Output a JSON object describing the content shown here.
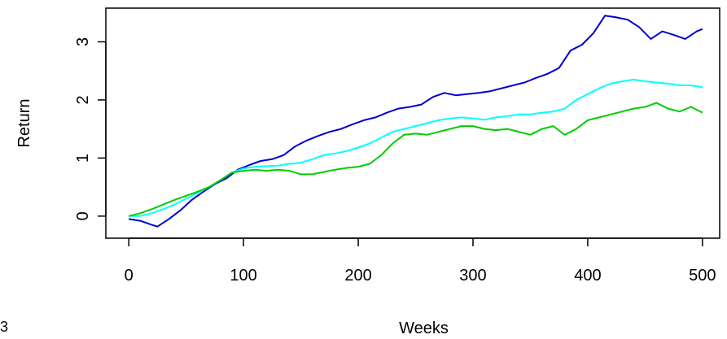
{
  "corner_label": "3",
  "chart_data": {
    "type": "line",
    "xlabel": "Weeks",
    "ylabel": "Return",
    "xlim": [
      -20,
      515
    ],
    "ylim": [
      -0.38,
      3.58
    ],
    "x_ticks": [
      0,
      100,
      200,
      300,
      400,
      500
    ],
    "y_ticks": [
      0,
      1,
      2,
      3
    ],
    "grid": false,
    "legend": "none",
    "series": [
      {
        "color": "#0000CD",
        "points": [
          [
            0,
            -0.05
          ],
          [
            10,
            -0.08
          ],
          [
            20,
            -0.15
          ],
          [
            25,
            -0.18
          ],
          [
            35,
            -0.05
          ],
          [
            45,
            0.1
          ],
          [
            55,
            0.28
          ],
          [
            65,
            0.42
          ],
          [
            75,
            0.55
          ],
          [
            85,
            0.65
          ],
          [
            95,
            0.8
          ],
          [
            105,
            0.88
          ],
          [
            115,
            0.95
          ],
          [
            125,
            0.98
          ],
          [
            135,
            1.05
          ],
          [
            145,
            1.2
          ],
          [
            155,
            1.3
          ],
          [
            165,
            1.38
          ],
          [
            175,
            1.45
          ],
          [
            185,
            1.5
          ],
          [
            195,
            1.58
          ],
          [
            205,
            1.65
          ],
          [
            215,
            1.7
          ],
          [
            225,
            1.78
          ],
          [
            235,
            1.85
          ],
          [
            245,
            1.88
          ],
          [
            255,
            1.92
          ],
          [
            265,
            2.05
          ],
          [
            275,
            2.12
          ],
          [
            285,
            2.08
          ],
          [
            295,
            2.1
          ],
          [
            305,
            2.12
          ],
          [
            315,
            2.15
          ],
          [
            325,
            2.2
          ],
          [
            335,
            2.25
          ],
          [
            345,
            2.3
          ],
          [
            355,
            2.38
          ],
          [
            365,
            2.45
          ],
          [
            375,
            2.55
          ],
          [
            385,
            2.85
          ],
          [
            395,
            2.95
          ],
          [
            405,
            3.15
          ],
          [
            415,
            3.45
          ],
          [
            425,
            3.42
          ],
          [
            435,
            3.38
          ],
          [
            445,
            3.25
          ],
          [
            455,
            3.05
          ],
          [
            465,
            3.18
          ],
          [
            475,
            3.12
          ],
          [
            485,
            3.05
          ],
          [
            495,
            3.18
          ],
          [
            500,
            3.22
          ]
        ]
      },
      {
        "color": "#00FFFF",
        "points": [
          [
            0,
            0.0
          ],
          [
            10,
            0.0
          ],
          [
            20,
            0.05
          ],
          [
            30,
            0.12
          ],
          [
            40,
            0.2
          ],
          [
            50,
            0.3
          ],
          [
            60,
            0.4
          ],
          [
            70,
            0.5
          ],
          [
            80,
            0.62
          ],
          [
            90,
            0.75
          ],
          [
            100,
            0.82
          ],
          [
            110,
            0.85
          ],
          [
            120,
            0.86
          ],
          [
            130,
            0.87
          ],
          [
            140,
            0.9
          ],
          [
            150,
            0.92
          ],
          [
            160,
            0.98
          ],
          [
            170,
            1.05
          ],
          [
            180,
            1.08
          ],
          [
            190,
            1.12
          ],
          [
            200,
            1.18
          ],
          [
            210,
            1.25
          ],
          [
            220,
            1.35
          ],
          [
            230,
            1.45
          ],
          [
            240,
            1.5
          ],
          [
            250,
            1.55
          ],
          [
            260,
            1.6
          ],
          [
            270,
            1.65
          ],
          [
            280,
            1.68
          ],
          [
            290,
            1.7
          ],
          [
            300,
            1.68
          ],
          [
            310,
            1.66
          ],
          [
            320,
            1.7
          ],
          [
            330,
            1.72
          ],
          [
            340,
            1.75
          ],
          [
            350,
            1.75
          ],
          [
            360,
            1.78
          ],
          [
            370,
            1.8
          ],
          [
            380,
            1.85
          ],
          [
            390,
            2.0
          ],
          [
            400,
            2.1
          ],
          [
            410,
            2.2
          ],
          [
            420,
            2.28
          ],
          [
            430,
            2.32
          ],
          [
            440,
            2.35
          ],
          [
            450,
            2.32
          ],
          [
            460,
            2.3
          ],
          [
            470,
            2.28
          ],
          [
            480,
            2.25
          ],
          [
            490,
            2.25
          ],
          [
            500,
            2.22
          ]
        ]
      },
      {
        "color": "#00CD00",
        "points": [
          [
            0,
            0.0
          ],
          [
            10,
            0.05
          ],
          [
            20,
            0.12
          ],
          [
            30,
            0.2
          ],
          [
            40,
            0.28
          ],
          [
            50,
            0.35
          ],
          [
            60,
            0.42
          ],
          [
            70,
            0.5
          ],
          [
            80,
            0.62
          ],
          [
            90,
            0.75
          ],
          [
            100,
            0.78
          ],
          [
            110,
            0.8
          ],
          [
            120,
            0.78
          ],
          [
            130,
            0.8
          ],
          [
            140,
            0.78
          ],
          [
            150,
            0.72
          ],
          [
            160,
            0.72
          ],
          [
            170,
            0.76
          ],
          [
            180,
            0.8
          ],
          [
            190,
            0.83
          ],
          [
            200,
            0.85
          ],
          [
            210,
            0.9
          ],
          [
            220,
            1.05
          ],
          [
            230,
            1.25
          ],
          [
            240,
            1.4
          ],
          [
            250,
            1.42
          ],
          [
            260,
            1.4
          ],
          [
            270,
            1.45
          ],
          [
            280,
            1.5
          ],
          [
            290,
            1.55
          ],
          [
            300,
            1.55
          ],
          [
            310,
            1.5
          ],
          [
            320,
            1.48
          ],
          [
            330,
            1.5
          ],
          [
            340,
            1.45
          ],
          [
            350,
            1.4
          ],
          [
            360,
            1.5
          ],
          [
            370,
            1.55
          ],
          [
            380,
            1.4
          ],
          [
            390,
            1.5
          ],
          [
            400,
            1.65
          ],
          [
            410,
            1.7
          ],
          [
            420,
            1.75
          ],
          [
            430,
            1.8
          ],
          [
            440,
            1.85
          ],
          [
            450,
            1.88
          ],
          [
            460,
            1.95
          ],
          [
            470,
            1.85
          ],
          [
            480,
            1.8
          ],
          [
            490,
            1.88
          ],
          [
            500,
            1.78
          ]
        ]
      }
    ]
  }
}
